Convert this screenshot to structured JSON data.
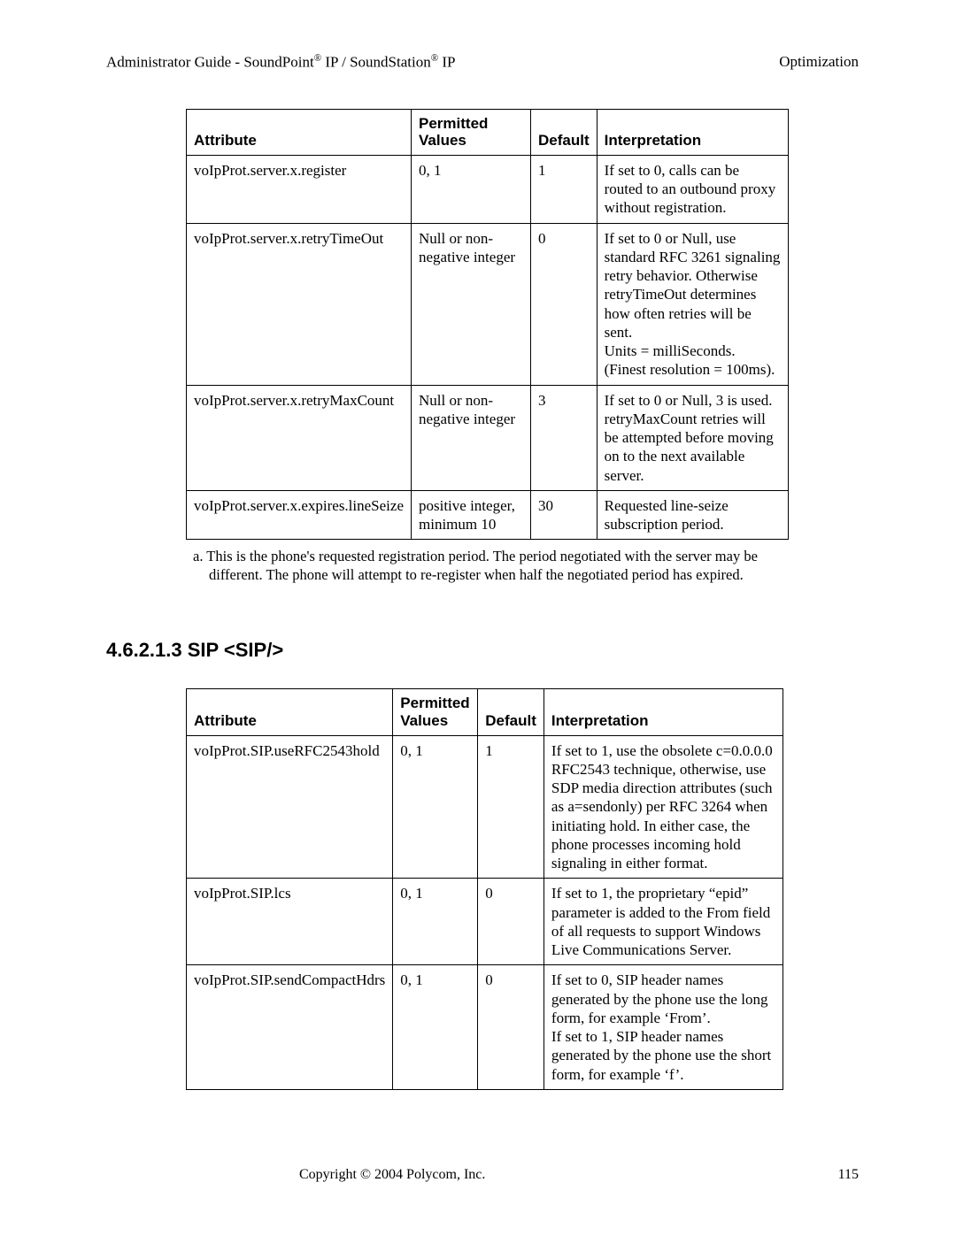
{
  "header": {
    "left_prefix": "Administrator Guide - SoundPoint",
    "left_mid": " IP / SoundStation",
    "left_suffix": " IP",
    "reg": "®",
    "right": "Optimization"
  },
  "table1": {
    "headers": [
      "Attribute",
      "Permitted Values",
      "Default",
      "Interpretation"
    ],
    "rows": [
      {
        "attr": "voIpProt.server.x.register",
        "perm": "0, 1",
        "def": "1",
        "interp": "If set to 0, calls can be routed to an outbound proxy without registration."
      },
      {
        "attr": "voIpProt.server.x.retryTimeOut",
        "perm": "Null or non-negative integer",
        "def": "0",
        "interp": "If set to 0 or Null, use standard RFC 3261 signaling retry behavior.  Otherwise retryTimeOut determines how often retries will be sent.\nUnits = milliSeconds.  (Finest resolution = 100ms)."
      },
      {
        "attr": "voIpProt.server.x.retryMaxCount",
        "perm": "Null or non-negative integer",
        "def": "3",
        "interp": "If set to 0 or Null, 3 is used. retryMaxCount retries will be attempted before moving on to the next available server."
      },
      {
        "attr": "voIpProt.server.x.expires.lineSeize",
        "perm": "positive integer, minimum 10",
        "def": "30",
        "interp": "Requested line-seize subscription period."
      }
    ]
  },
  "footnote": "a.  This is the phone's requested registration period.  The period negotiated with the server may be different.  The phone will attempt to re-register when half the negotiated period has expired.",
  "section_heading": "4.6.2.1.3  SIP <SIP/>",
  "table2": {
    "headers": [
      "Attribute",
      "Permitted Values",
      "Default",
      "Interpretation"
    ],
    "rows": [
      {
        "attr": "voIpProt.SIP.useRFC2543hold",
        "perm": "0, 1",
        "def": "1",
        "interp": "If set to 1, use the obsolete c=0.0.0.0 RFC2543 technique, otherwise, use SDP media direction attributes (such as a=sendonly) per RFC 3264 when initiating hold.  In either case, the phone processes incoming hold signaling in either format."
      },
      {
        "attr": "voIpProt.SIP.lcs",
        "perm": "0, 1",
        "def": "0",
        "interp": "If set to 1, the proprietary “epid” parameter is added to the From field of all requests to support Windows Live Communications Server."
      },
      {
        "attr": "voIpProt.SIP.sendCompactHdrs",
        "perm": "0, 1",
        "def": "0",
        "interp": "If set to 0, SIP header names generated by the phone use the long form, for example ‘From’.\nIf set to 1, SIP header names generated by the phone use the short form, for example ‘f’."
      }
    ]
  },
  "footer": {
    "copyright": "Copyright © 2004 Polycom, Inc.",
    "page_number": "115"
  }
}
